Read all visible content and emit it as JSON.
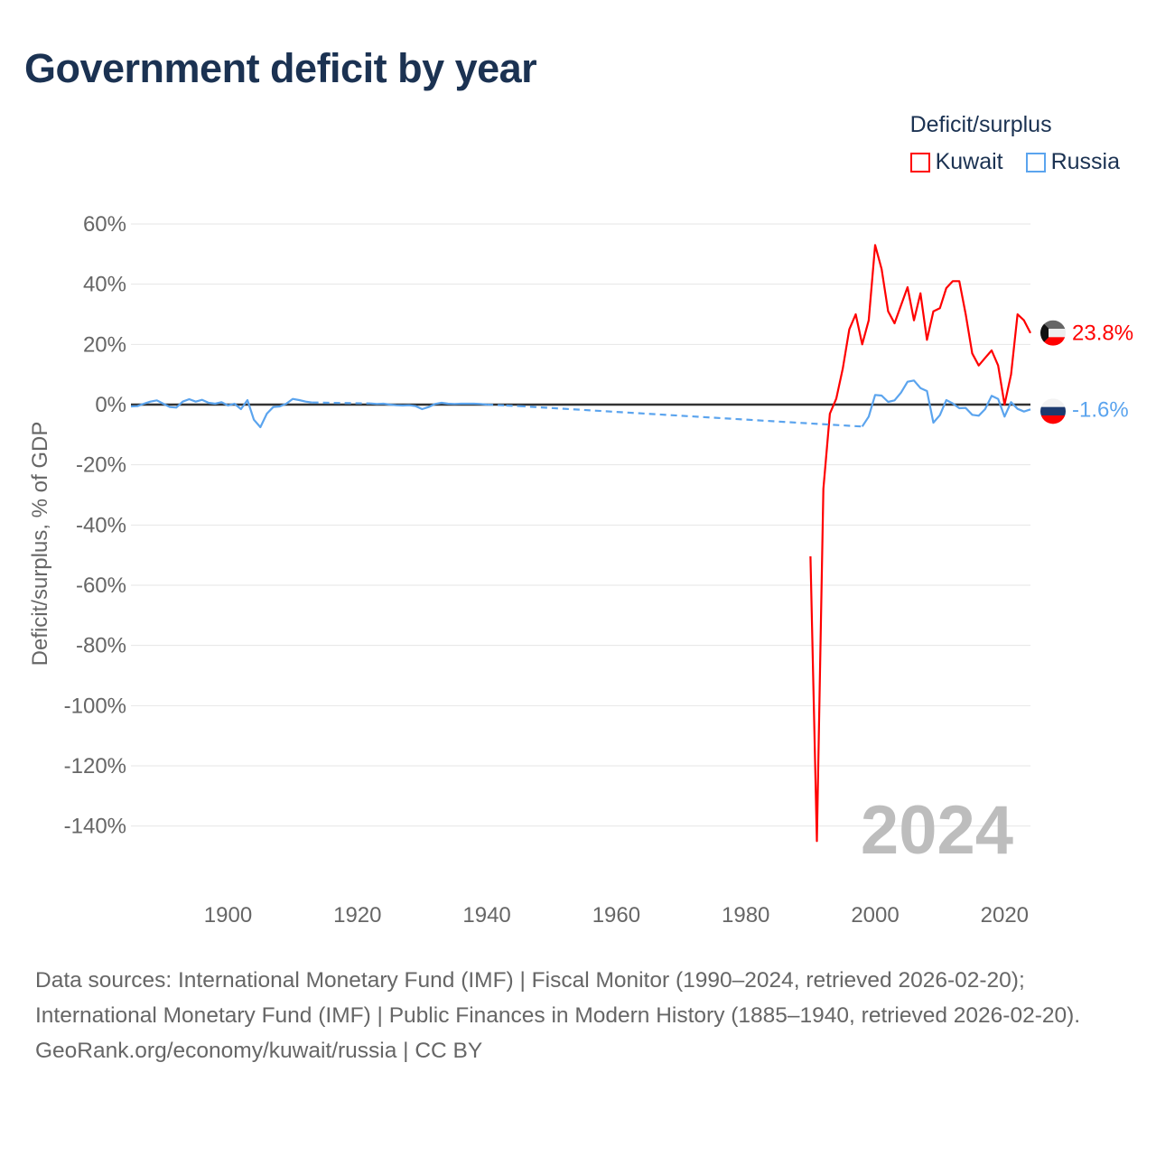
{
  "title": "Government deficit by year",
  "legend": {
    "title": "Deficit/surplus",
    "items": [
      {
        "name": "Kuwait",
        "color": "#ff0000"
      },
      {
        "name": "Russia",
        "color": "#5ba4ee"
      }
    ]
  },
  "year_watermark": "2024",
  "end_labels": {
    "Kuwait": "23.8%",
    "Russia": "-1.6%"
  },
  "footer": {
    "sources": "Data sources: International Monetary Fund (IMF) | Fiscal Monitor (1990–2024, retrieved 2026-02-20); International Monetary Fund (IMF) | Public Finances in Modern History (1885–1940, retrieved 2026-02-20).",
    "credit": "GeoRank.org/economy/kuwait/russia | CC BY"
  },
  "chart_data": {
    "type": "line",
    "title": "Government deficit by year",
    "xlabel": "",
    "ylabel": "Deficit/surplus, % of GDP",
    "xlim": [
      1885,
      2024
    ],
    "ylim": [
      -150,
      60
    ],
    "xticks": [
      1900,
      1920,
      1940,
      1960,
      1980,
      2000,
      2020
    ],
    "xtick_labels": [
      "1900",
      "1920",
      "1940",
      "1960",
      "1980",
      "2000",
      "2020"
    ],
    "yticks": [
      60,
      40,
      20,
      0,
      -20,
      -40,
      -60,
      -80,
      -100,
      -120,
      -140
    ],
    "ytick_labels": [
      "60%",
      "40%",
      "20%",
      "0%",
      "-20%",
      "-40%",
      "-60%",
      "-80%",
      "-100%",
      "-120%",
      "-140%"
    ],
    "grid": true,
    "legend_position": "top-right",
    "series": [
      {
        "name": "Kuwait",
        "color": "#ff0000",
        "x": [
          1990,
          1991,
          1992,
          1993,
          1994,
          1995,
          1996,
          1997,
          1998,
          1999,
          2000,
          2001,
          2002,
          2003,
          2004,
          2005,
          2006,
          2007,
          2008,
          2009,
          2010,
          2011,
          2012,
          2013,
          2014,
          2015,
          2016,
          2017,
          2018,
          2019,
          2020,
          2021,
          2022,
          2023,
          2024
        ],
        "y": [
          -50.4,
          -145,
          -28,
          -3,
          2,
          12,
          25,
          30,
          20,
          28,
          53,
          45,
          31,
          27,
          33,
          39,
          28,
          37,
          21.5,
          31,
          32,
          38.7,
          41,
          41,
          30,
          17,
          13,
          15.5,
          18,
          13,
          0,
          10,
          30,
          28,
          23.8
        ]
      },
      {
        "name": "Russia",
        "color": "#5ba4ee",
        "x": [
          1885,
          1886,
          1887,
          1888,
          1889,
          1890,
          1891,
          1892,
          1893,
          1894,
          1895,
          1896,
          1897,
          1898,
          1899,
          1900,
          1901,
          1902,
          1903,
          1904,
          1905,
          1906,
          1907,
          1908,
          1909,
          1910,
          1911,
          1912,
          1913,
          1922,
          1923,
          1924,
          1925,
          1926,
          1927,
          1928,
          1929,
          1930,
          1931,
          1932,
          1933,
          1934,
          1935,
          1936,
          1937,
          1938,
          1939,
          1940,
          1943,
          1945,
          1998,
          1999,
          2000,
          2001,
          2002,
          2003,
          2004,
          2005,
          2006,
          2007,
          2008,
          2009,
          2010,
          2011,
          2012,
          2013,
          2014,
          2015,
          2016,
          2017,
          2018,
          2019,
          2020,
          2021,
          2022,
          2023,
          2024
        ],
        "y": [
          -0.6,
          -0.5,
          0.3,
          1,
          1.4,
          0.3,
          -0.8,
          -1,
          1,
          1.8,
          1,
          1.6,
          0.6,
          0.3,
          0.8,
          -0.3,
          0.3,
          -1.5,
          1.5,
          -5,
          -7.5,
          -3,
          -0.8,
          -0.6,
          0.3,
          1.9,
          1.5,
          1,
          0.7,
          0.4,
          0.2,
          0.3,
          0,
          -0.2,
          -0.3,
          -0.2,
          -0.5,
          -1.5,
          -0.8,
          0.2,
          0.6,
          0.3,
          0.2,
          0.3,
          0.3,
          0.3,
          0.2,
          0,
          -0.3,
          -0.5,
          -7.3,
          -4,
          3.2,
          3,
          0.9,
          1.4,
          4,
          7.6,
          8,
          5.5,
          4.5,
          -6,
          -3.5,
          1.5,
          0.4,
          -1.2,
          -1.1,
          -3.4,
          -3.7,
          -1.5,
          2.9,
          1.9,
          -4,
          0.8,
          -1.4,
          -2.3,
          -1.6
        ]
      }
    ]
  }
}
